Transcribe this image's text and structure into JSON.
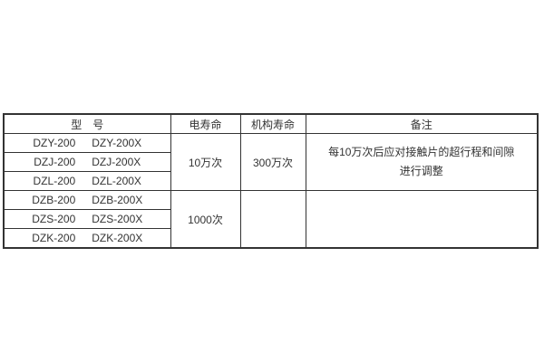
{
  "page": {
    "background": "#ffffff",
    "border_color": "#333333",
    "text_color": "#333333"
  },
  "table": {
    "headers": {
      "model": "型　号",
      "electrical_life": "电寿命",
      "mechanism_life": "机构寿命",
      "remarks": "备注"
    },
    "groups": [
      {
        "electrical_life": "10万次",
        "mechanism_life": "300万次",
        "remarks": [
          "每10万次后应对接触片的超行程和间隙",
          "进行调整"
        ],
        "rows": [
          {
            "model_a": "DZY-200",
            "model_b": "DZY-200X"
          },
          {
            "model_a": "DZJ-200",
            "model_b": "DZJ-200X"
          },
          {
            "model_a": "DZL-200",
            "model_b": "DZL-200X"
          }
        ]
      },
      {
        "electrical_life": "1000次",
        "mechanism_life": "",
        "remarks": [
          "",
          ""
        ],
        "rows": [
          {
            "model_a": "DZB-200",
            "model_b": "DZB-200X"
          },
          {
            "model_a": "DZS-200",
            "model_b": "DZS-200X"
          },
          {
            "model_a": "DZK-200",
            "model_b": "DZK-200X"
          }
        ]
      }
    ]
  }
}
